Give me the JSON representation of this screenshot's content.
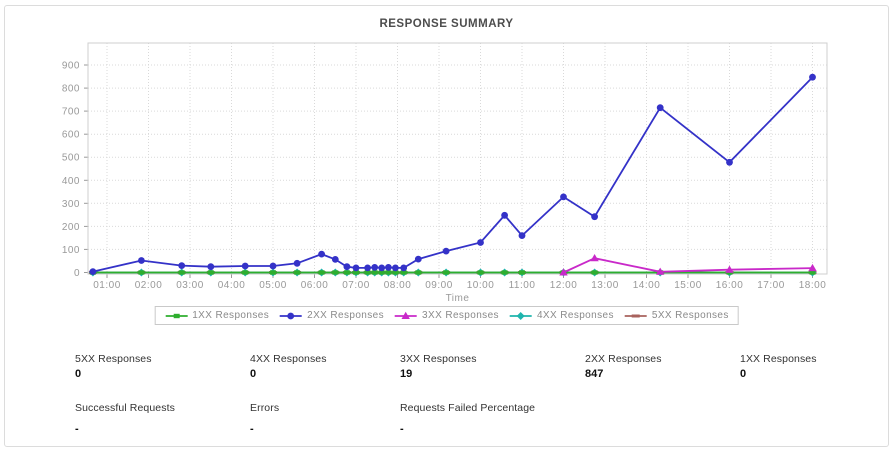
{
  "panel": {
    "title": "RESPONSE SUMMARY"
  },
  "chart_data": {
    "type": "line",
    "title": "RESPONSE SUMMARY",
    "xlabel": "Time",
    "ylabel": "",
    "x_ticks": [
      "01:00",
      "02:00",
      "03:00",
      "04:00",
      "05:00",
      "06:00",
      "07:00",
      "08:00",
      "09:00",
      "10:00",
      "11:00",
      "12:00",
      "13:00",
      "14:00",
      "15:00",
      "16:00",
      "17:00",
      "18:00"
    ],
    "y_ticks": [
      0,
      100,
      200,
      300,
      400,
      500,
      600,
      700,
      800,
      900
    ],
    "ylim": [
      0,
      960
    ],
    "grid": true,
    "legend_position": "bottom",
    "series": [
      {
        "name": "1XX Responses",
        "color": "#2eae2e",
        "marker": "square",
        "points": [
          [
            0.66,
            0
          ],
          [
            1.83,
            0
          ],
          [
            2.8,
            0
          ],
          [
            3.5,
            0
          ],
          [
            4.33,
            0
          ],
          [
            5.0,
            0
          ],
          [
            5.58,
            0
          ],
          [
            6.17,
            0
          ],
          [
            6.5,
            0
          ],
          [
            6.78,
            0
          ],
          [
            7.0,
            0
          ],
          [
            7.28,
            0
          ],
          [
            7.45,
            0
          ],
          [
            7.62,
            0
          ],
          [
            7.78,
            0
          ],
          [
            7.95,
            0
          ],
          [
            8.15,
            0
          ],
          [
            8.5,
            0
          ],
          [
            9.17,
            0
          ],
          [
            10.0,
            0
          ],
          [
            10.58,
            0
          ],
          [
            11.0,
            0
          ],
          [
            12.0,
            0
          ],
          [
            12.75,
            0
          ],
          [
            14.33,
            0
          ],
          [
            16.0,
            0
          ],
          [
            18.0,
            0
          ]
        ]
      },
      {
        "name": "2XX Responses",
        "color": "#3432c8",
        "marker": "circle",
        "points": [
          [
            0.66,
            4
          ],
          [
            1.83,
            52
          ],
          [
            2.8,
            30
          ],
          [
            3.5,
            25
          ],
          [
            4.33,
            28
          ],
          [
            5.0,
            28
          ],
          [
            5.58,
            40
          ],
          [
            6.17,
            80
          ],
          [
            6.5,
            57
          ],
          [
            6.78,
            25
          ],
          [
            7.0,
            20
          ],
          [
            7.28,
            20
          ],
          [
            7.45,
            22
          ],
          [
            7.62,
            20
          ],
          [
            7.78,
            22
          ],
          [
            7.95,
            20
          ],
          [
            8.15,
            20
          ],
          [
            8.5,
            58
          ],
          [
            9.17,
            93
          ],
          [
            10.0,
            130
          ],
          [
            10.58,
            248
          ],
          [
            11.0,
            160
          ],
          [
            12.0,
            328
          ],
          [
            12.75,
            242
          ],
          [
            14.33,
            715
          ],
          [
            16.0,
            478
          ],
          [
            18.0,
            847
          ]
        ]
      },
      {
        "name": "3XX Responses",
        "color": "#c929c9",
        "marker": "triangle",
        "points": [
          [
            12.0,
            0
          ],
          [
            12.75,
            62
          ],
          [
            14.33,
            3
          ],
          [
            16.0,
            12
          ],
          [
            18.0,
            19
          ]
        ]
      },
      {
        "name": "4XX Responses",
        "color": "#1fb5ad",
        "marker": "diamond",
        "points": [
          [
            0.66,
            0
          ],
          [
            1.83,
            0
          ],
          [
            2.8,
            0
          ],
          [
            3.5,
            0
          ],
          [
            4.33,
            0
          ],
          [
            5.0,
            0
          ],
          [
            5.58,
            0
          ],
          [
            6.17,
            0
          ],
          [
            6.5,
            0
          ],
          [
            6.78,
            0
          ],
          [
            7.0,
            0
          ],
          [
            7.28,
            0
          ],
          [
            7.45,
            0
          ],
          [
            7.62,
            0
          ],
          [
            7.78,
            0
          ],
          [
            7.95,
            0
          ],
          [
            8.15,
            0
          ],
          [
            8.5,
            0
          ],
          [
            9.17,
            0
          ],
          [
            10.0,
            0
          ],
          [
            10.58,
            0
          ],
          [
            11.0,
            0
          ],
          [
            12.0,
            0
          ],
          [
            12.75,
            0
          ],
          [
            14.33,
            0
          ],
          [
            16.0,
            0
          ],
          [
            18.0,
            0
          ]
        ]
      },
      {
        "name": "5XX Responses",
        "color": "#a8625d",
        "marker": "dash",
        "points": [
          [
            0.66,
            0
          ],
          [
            1.83,
            0
          ],
          [
            2.8,
            0
          ],
          [
            3.5,
            0
          ],
          [
            4.33,
            0
          ],
          [
            5.0,
            0
          ],
          [
            5.58,
            0
          ],
          [
            6.17,
            0
          ],
          [
            6.5,
            0
          ],
          [
            6.78,
            0
          ],
          [
            7.0,
            0
          ],
          [
            7.28,
            0
          ],
          [
            7.45,
            0
          ],
          [
            7.62,
            0
          ],
          [
            7.78,
            0
          ],
          [
            7.95,
            0
          ],
          [
            8.15,
            0
          ],
          [
            8.5,
            0
          ],
          [
            9.17,
            0
          ],
          [
            10.0,
            0
          ],
          [
            10.58,
            0
          ],
          [
            11.0,
            0
          ],
          [
            12.0,
            0
          ],
          [
            12.75,
            0
          ],
          [
            14.33,
            0
          ],
          [
            16.0,
            0
          ],
          [
            18.0,
            0
          ]
        ]
      }
    ]
  },
  "stats": {
    "row1": [
      {
        "label": "5XX Responses",
        "value": "0"
      },
      {
        "label": "4XX Responses",
        "value": "0"
      },
      {
        "label": "3XX Responses",
        "value": "19"
      },
      {
        "label": "2XX Responses",
        "value": "847"
      },
      {
        "label": "1XX Responses",
        "value": "0"
      }
    ],
    "row2": [
      {
        "label": "Successful Requests",
        "value": "-"
      },
      {
        "label": "Errors",
        "value": "-"
      },
      {
        "label": "Requests Failed Percentage",
        "value": "-"
      }
    ]
  }
}
